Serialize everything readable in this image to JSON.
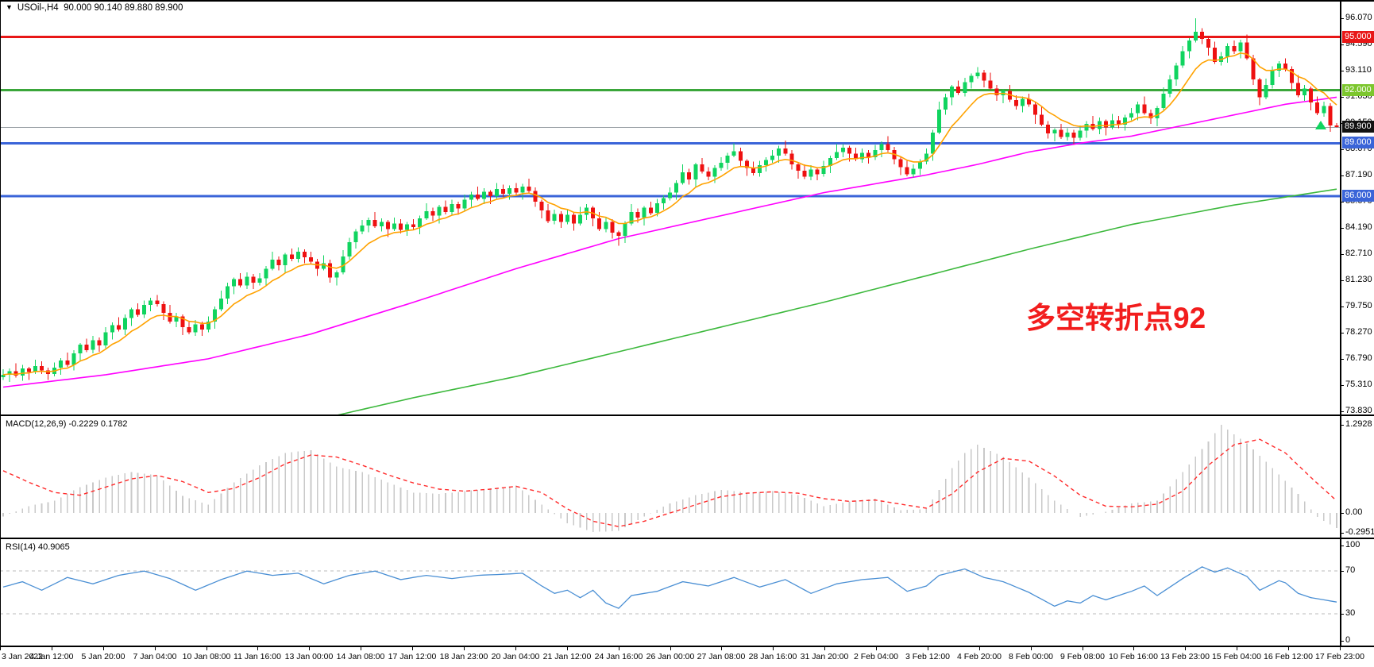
{
  "header": {
    "expander": "▼",
    "title": "USOil-,H4",
    "ohlc": "90.000 90.140 89.880 89.900"
  },
  "panes": {
    "macd_label": "MACD(12,26,9) -0.2229 0.1782",
    "rsi_label": "RSI(14) 40.9065"
  },
  "annotation": {
    "text": "多空转折点92",
    "color": "#f21d1d"
  },
  "colors": {
    "up_candle": "#10d45f",
    "down_candle": "#ee1111",
    "ma_fast": "#ffa200",
    "ma_mid": "#ff00ff",
    "ma_slow": "#3cb83c",
    "line_red": "#e81717",
    "line_green": "#3aa63a",
    "line_blue": "#3a64d8",
    "current_line": "#9aa0a6",
    "badge_green": "#7cc62e",
    "badge_black": "#111111",
    "macd_hist": "#c9c9c9",
    "macd_signal": "#ff2b2b",
    "rsi_line": "#4a8fd4",
    "grid_dash": "#bbbbbb"
  },
  "price_axis": {
    "ticks": [
      "96.070",
      "94.590",
      "93.110",
      "91.630",
      "90.150",
      "88.670",
      "87.190",
      "85.670",
      "84.190",
      "82.710",
      "81.230",
      "79.750",
      "78.270",
      "76.790",
      "75.310",
      "73.830"
    ]
  },
  "macd_axis": {
    "ticks": [
      "1.2928",
      "0.00",
      "-0.2951"
    ]
  },
  "rsi_axis": {
    "ticks": [
      "100",
      "70",
      "30",
      "0"
    ]
  },
  "time_axis": {
    "labels": [
      "3 Jan 2022",
      "4 Jan 12:00",
      "5 Jan 20:00",
      "7 Jan 04:00",
      "10 Jan 08:00",
      "11 Jan 16:00",
      "13 Jan 00:00",
      "14 Jan 08:00",
      "17 Jan 12:00",
      "18 Jan 23:00",
      "20 Jan 04:00",
      "21 Jan 12:00",
      "24 Jan 16:00",
      "26 Jan 00:00",
      "27 Jan 08:00",
      "28 Jan 16:00",
      "31 Jan 20:00",
      "2 Feb 04:00",
      "3 Feb 12:00",
      "4 Feb 20:00",
      "8 Feb 00:00",
      "9 Feb 08:00",
      "10 Feb 16:00",
      "13 Feb 23:00",
      "15 Feb 04:00",
      "16 Feb 12:00",
      "17 Feb 23:00"
    ]
  },
  "hlines": [
    {
      "price": 95.0,
      "label": "95.000",
      "line": "#e81717",
      "badge": "#e81717",
      "width": 3
    },
    {
      "price": 92.0,
      "label": "92.000",
      "line": "#3aa63a",
      "badge": "#7cc62e",
      "width": 3
    },
    {
      "price": 89.9,
      "label": "89.900",
      "line": "#9aa0a6",
      "badge": "#111111",
      "width": 1,
      "current": true
    },
    {
      "price": 89.0,
      "label": "89.000",
      "line": "#3a64d8",
      "badge": "#3a64d8",
      "width": 3
    },
    {
      "price": 86.0,
      "label": "86.000",
      "line": "#3a64d8",
      "badge": "#3a64d8",
      "width": 3
    }
  ],
  "chart_data": {
    "type": "candlestick",
    "title": "USOil- H4 crude oil chart with MACD(12,26,9) and RSI(14)",
    "symbol": "USOil-",
    "timeframe": "H4",
    "x_range": [
      "3 Jan 2022",
      "17 Feb 23:00"
    ],
    "current_bar": {
      "open": 90.0,
      "high": 90.14,
      "low": 89.88,
      "close": 89.9
    },
    "main": {
      "top_price": 97.1,
      "bottom_price": 73.65,
      "first_open": 75.75,
      "closes": [
        75.9,
        76.1,
        75.85,
        76.25,
        76.05,
        76.4,
        76.15,
        75.95,
        76.3,
        76.7,
        76.45,
        77.1,
        77.6,
        77.3,
        77.85,
        77.55,
        78.3,
        78.7,
        78.45,
        79.1,
        79.6,
        79.3,
        79.85,
        80.1,
        79.9,
        79.4,
        78.9,
        79.2,
        78.6,
        78.3,
        78.75,
        78.45,
        78.9,
        79.6,
        80.2,
        80.9,
        81.3,
        80.95,
        81.45,
        81.1,
        81.35,
        81.9,
        82.4,
        82.1,
        82.7,
        82.45,
        82.85,
        82.55,
        82.3,
        81.9,
        82.2,
        81.4,
        81.7,
        82.6,
        83.4,
        84.0,
        84.35,
        84.65,
        84.3,
        84.55,
        84.15,
        84.45,
        84.1,
        84.4,
        84.25,
        84.75,
        85.15,
        84.9,
        85.4,
        85.1,
        85.55,
        85.3,
        85.8,
        86.1,
        85.85,
        86.25,
        86.0,
        86.4,
        86.15,
        86.45,
        86.2,
        86.55,
        86.3,
        85.7,
        85.2,
        84.6,
        85.0,
        84.55,
        84.95,
        84.45,
        84.95,
        85.35,
        84.75,
        84.15,
        84.55,
        83.95,
        83.75,
        84.45,
        85.1,
        84.8,
        85.35,
        85.05,
        85.6,
        85.9,
        86.2,
        86.75,
        87.35,
        86.95,
        87.8,
        87.4,
        87.1,
        87.6,
        87.9,
        88.3,
        88.55,
        88.0,
        87.6,
        87.3,
        87.75,
        88.05,
        88.3,
        88.7,
        88.4,
        87.8,
        87.45,
        87.1,
        87.5,
        87.25,
        87.7,
        88.15,
        88.5,
        88.75,
        88.4,
        88.1,
        88.45,
        88.2,
        88.6,
        88.95,
        88.6,
        88.1,
        87.65,
        87.25,
        87.55,
        87.95,
        88.4,
        89.6,
        90.9,
        91.6,
        92.2,
        91.85,
        92.45,
        92.8,
        93.0,
        92.55,
        92.1,
        91.7,
        91.95,
        91.45,
        91.1,
        91.5,
        91.2,
        90.6,
        90.05,
        89.55,
        89.75,
        89.35,
        89.6,
        89.3,
        89.7,
        90.1,
        89.8,
        90.25,
        89.9,
        90.3,
        90.05,
        90.45,
        90.7,
        91.2,
        90.7,
        90.4,
        91.0,
        91.8,
        92.6,
        93.4,
        94.2,
        94.8,
        95.3,
        94.9,
        94.4,
        93.6,
        93.9,
        94.5,
        94.2,
        94.7,
        93.8,
        92.6,
        91.6,
        92.3,
        93.1,
        93.5,
        93.2,
        92.4,
        91.7,
        92.1,
        91.3,
        90.7,
        91.1,
        90.0,
        89.9
      ],
      "wick_up": [
        0.3,
        0.15,
        0.45,
        0.2,
        0.1,
        0.35,
        0.25,
        0.15
      ],
      "wick_down": [
        0.15,
        0.4,
        0.1,
        0.3,
        0.45,
        0.12,
        0.2,
        0.35
      ],
      "wick_overrides": {
        "96": [
          0.1,
          0.55
        ],
        "161": [
          0.1,
          0.5
        ],
        "186": [
          0.77,
          0.1
        ],
        "208": [
          0.14,
          0.02
        ]
      },
      "ma_fast": {
        "name": "fast-ma",
        "period": 9
      },
      "ma_mid": {
        "name": "mid-ma",
        "anchors": [
          [
            0,
            75.2
          ],
          [
            16,
            75.9
          ],
          [
            32,
            76.8
          ],
          [
            48,
            78.2
          ],
          [
            64,
            80.0
          ],
          [
            80,
            81.9
          ],
          [
            96,
            83.6
          ],
          [
            112,
            84.9
          ],
          [
            128,
            86.2
          ],
          [
            144,
            87.2
          ],
          [
            152,
            87.8
          ],
          [
            160,
            88.5
          ],
          [
            168,
            89.0
          ],
          [
            176,
            89.4
          ],
          [
            184,
            90.0
          ],
          [
            192,
            90.6
          ],
          [
            200,
            91.2
          ],
          [
            208,
            91.6
          ]
        ]
      },
      "ma_slow": {
        "name": "slow-ma",
        "anchors": [
          [
            52,
            73.6
          ],
          [
            64,
            74.6
          ],
          [
            80,
            75.8
          ],
          [
            96,
            77.2
          ],
          [
            112,
            78.6
          ],
          [
            128,
            80.0
          ],
          [
            144,
            81.5
          ],
          [
            160,
            83.0
          ],
          [
            176,
            84.4
          ],
          [
            192,
            85.5
          ],
          [
            208,
            86.4
          ]
        ]
      }
    },
    "macd": {
      "top": 1.42,
      "bottom": -0.36,
      "value": -0.2229,
      "signal_value": 0.1782,
      "hist_anchors": [
        [
          0,
          -0.05
        ],
        [
          4,
          0.1
        ],
        [
          8,
          0.18
        ],
        [
          12,
          0.38
        ],
        [
          16,
          0.52
        ],
        [
          20,
          0.6
        ],
        [
          24,
          0.55
        ],
        [
          28,
          0.25
        ],
        [
          32,
          0.12
        ],
        [
          36,
          0.45
        ],
        [
          40,
          0.7
        ],
        [
          44,
          0.88
        ],
        [
          48,
          0.92
        ],
        [
          52,
          0.68
        ],
        [
          56,
          0.6
        ],
        [
          60,
          0.45
        ],
        [
          64,
          0.3
        ],
        [
          68,
          0.28
        ],
        [
          72,
          0.32
        ],
        [
          76,
          0.36
        ],
        [
          80,
          0.4
        ],
        [
          84,
          0.12
        ],
        [
          88,
          -0.15
        ],
        [
          92,
          -0.28
        ],
        [
          96,
          -0.26
        ],
        [
          100,
          -0.05
        ],
        [
          104,
          0.14
        ],
        [
          108,
          0.26
        ],
        [
          112,
          0.34
        ],
        [
          116,
          0.3
        ],
        [
          120,
          0.32
        ],
        [
          124,
          0.26
        ],
        [
          128,
          0.1
        ],
        [
          132,
          0.17
        ],
        [
          136,
          0.21
        ],
        [
          140,
          0.04
        ],
        [
          144,
          0.06
        ],
        [
          146,
          0.34
        ],
        [
          148,
          0.66
        ],
        [
          150,
          0.88
        ],
        [
          152,
          1.0
        ],
        [
          156,
          0.82
        ],
        [
          160,
          0.52
        ],
        [
          164,
          0.18
        ],
        [
          168,
          -0.06
        ],
        [
          172,
          0.02
        ],
        [
          176,
          0.14
        ],
        [
          180,
          0.18
        ],
        [
          184,
          0.6
        ],
        [
          188,
          1.05
        ],
        [
          190,
          1.29
        ],
        [
          194,
          1.02
        ],
        [
          198,
          0.66
        ],
        [
          202,
          0.28
        ],
        [
          205,
          -0.06
        ],
        [
          208,
          -0.2229
        ]
      ],
      "signal_anchors": [
        [
          0,
          0.62
        ],
        [
          4,
          0.45
        ],
        [
          8,
          0.3
        ],
        [
          12,
          0.26
        ],
        [
          16,
          0.38
        ],
        [
          20,
          0.5
        ],
        [
          24,
          0.55
        ],
        [
          28,
          0.46
        ],
        [
          32,
          0.3
        ],
        [
          36,
          0.36
        ],
        [
          40,
          0.52
        ],
        [
          44,
          0.72
        ],
        [
          48,
          0.85
        ],
        [
          52,
          0.82
        ],
        [
          56,
          0.7
        ],
        [
          60,
          0.56
        ],
        [
          64,
          0.44
        ],
        [
          68,
          0.35
        ],
        [
          72,
          0.32
        ],
        [
          76,
          0.35
        ],
        [
          80,
          0.39
        ],
        [
          84,
          0.3
        ],
        [
          88,
          0.06
        ],
        [
          92,
          -0.12
        ],
        [
          96,
          -0.2
        ],
        [
          100,
          -0.12
        ],
        [
          104,
          0.0
        ],
        [
          108,
          0.12
        ],
        [
          112,
          0.24
        ],
        [
          116,
          0.29
        ],
        [
          120,
          0.31
        ],
        [
          124,
          0.29
        ],
        [
          128,
          0.21
        ],
        [
          132,
          0.17
        ],
        [
          136,
          0.19
        ],
        [
          140,
          0.13
        ],
        [
          144,
          0.07
        ],
        [
          148,
          0.28
        ],
        [
          152,
          0.6
        ],
        [
          156,
          0.8
        ],
        [
          160,
          0.76
        ],
        [
          164,
          0.54
        ],
        [
          168,
          0.26
        ],
        [
          172,
          0.1
        ],
        [
          176,
          0.09
        ],
        [
          180,
          0.13
        ],
        [
          184,
          0.32
        ],
        [
          188,
          0.7
        ],
        [
          192,
          1.0
        ],
        [
          196,
          1.08
        ],
        [
          200,
          0.88
        ],
        [
          204,
          0.52
        ],
        [
          208,
          0.1782
        ]
      ]
    },
    "rsi": {
      "top": 100,
      "bottom": 0,
      "levels": [
        70,
        30
      ],
      "current": 40.9065,
      "anchors": [
        [
          0,
          55
        ],
        [
          3,
          60
        ],
        [
          6,
          52
        ],
        [
          10,
          64
        ],
        [
          14,
          58
        ],
        [
          18,
          66
        ],
        [
          22,
          70
        ],
        [
          26,
          63
        ],
        [
          30,
          52
        ],
        [
          34,
          62
        ],
        [
          38,
          70
        ],
        [
          42,
          66
        ],
        [
          46,
          68
        ],
        [
          50,
          58
        ],
        [
          54,
          66
        ],
        [
          58,
          70
        ],
        [
          62,
          62
        ],
        [
          66,
          66
        ],
        [
          70,
          63
        ],
        [
          74,
          66
        ],
        [
          78,
          67
        ],
        [
          81,
          68
        ],
        [
          84,
          56
        ],
        [
          86,
          49
        ],
        [
          88,
          52
        ],
        [
          90,
          45
        ],
        [
          92,
          52
        ],
        [
          94,
          40
        ],
        [
          96,
          35
        ],
        [
          98,
          47
        ],
        [
          102,
          51
        ],
        [
          106,
          60
        ],
        [
          110,
          56
        ],
        [
          114,
          64
        ],
        [
          118,
          55
        ],
        [
          122,
          62
        ],
        [
          126,
          49
        ],
        [
          130,
          58
        ],
        [
          134,
          62
        ],
        [
          138,
          64
        ],
        [
          141,
          51
        ],
        [
          144,
          56
        ],
        [
          146,
          66
        ],
        [
          150,
          72
        ],
        [
          153,
          64
        ],
        [
          156,
          60
        ],
        [
          160,
          50
        ],
        [
          164,
          37
        ],
        [
          166,
          42
        ],
        [
          168,
          40
        ],
        [
          170,
          47
        ],
        [
          172,
          43
        ],
        [
          176,
          51
        ],
        [
          178,
          56
        ],
        [
          180,
          47
        ],
        [
          184,
          63
        ],
        [
          187,
          74
        ],
        [
          189,
          69
        ],
        [
          191,
          73
        ],
        [
          194,
          65
        ],
        [
          196,
          52
        ],
        [
          199,
          61
        ],
        [
          200,
          59
        ],
        [
          202,
          49
        ],
        [
          204,
          45
        ],
        [
          206,
          43
        ],
        [
          208,
          40.9
        ]
      ]
    }
  }
}
